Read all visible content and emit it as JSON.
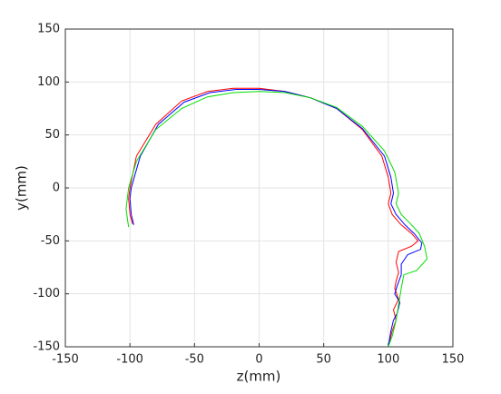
{
  "chart_data": {
    "type": "line",
    "xlabel": "z(mm)",
    "ylabel": "y(mm)",
    "xlim": [
      -150,
      150
    ],
    "ylim": [
      -150,
      150
    ],
    "xticks": [
      -150,
      -100,
      -50,
      0,
      50,
      100,
      150
    ],
    "yticks": [
      -150,
      -100,
      -50,
      0,
      50,
      100,
      150
    ],
    "grid": true,
    "series": [
      {
        "color": "#ff0000",
        "x": [
          -98,
          -100,
          -101,
          -100,
          -95,
          -80,
          -60,
          -40,
          -20,
          0,
          20,
          40,
          60,
          80,
          95,
          100,
          102,
          100,
          103,
          110,
          118,
          123,
          118,
          108,
          106,
          108,
          106,
          105,
          108,
          104,
          106,
          103,
          100
        ],
        "values": [
          -34,
          -25,
          -10,
          0,
          30,
          60,
          82,
          91,
          94,
          94,
          91,
          85,
          75,
          55,
          30,
          10,
          -5,
          -15,
          -25,
          -35,
          -43,
          -50,
          -55,
          -60,
          -70,
          -80,
          -88,
          -95,
          -105,
          -115,
          -125,
          -135,
          -150
        ]
      },
      {
        "color": "#0000ff",
        "x": [
          -97,
          -99,
          -100,
          -99,
          -92,
          -78,
          -58,
          -38,
          -18,
          0,
          20,
          40,
          60,
          80,
          97,
          102,
          104,
          102,
          106,
          113,
          120,
          126,
          125,
          115,
          110,
          110,
          107,
          105,
          109,
          107,
          104,
          102,
          100
        ],
        "values": [
          -35,
          -25,
          -10,
          0,
          30,
          60,
          81,
          90,
          93,
          93,
          91,
          85,
          75,
          56,
          30,
          10,
          -5,
          -15,
          -25,
          -35,
          -43,
          -52,
          -58,
          -63,
          -72,
          -82,
          -92,
          -100,
          -108,
          -118,
          -125,
          -135,
          -150
        ]
      },
      {
        "color": "#00dd00",
        "x": [
          -101,
          -103,
          -101,
          -95,
          -80,
          -60,
          -40,
          -20,
          0,
          20,
          40,
          60,
          80,
          97,
          105,
          108,
          106,
          110,
          118,
          124,
          128,
          130,
          122,
          112,
          110,
          108,
          106,
          103,
          100
        ],
        "values": [
          -37,
          -20,
          0,
          25,
          55,
          75,
          86,
          90,
          91,
          90,
          85,
          76,
          58,
          35,
          15,
          -5,
          -15,
          -25,
          -35,
          -43,
          -55,
          -67,
          -78,
          -82,
          -95,
          -110,
          -125,
          -140,
          -150
        ]
      }
    ]
  }
}
